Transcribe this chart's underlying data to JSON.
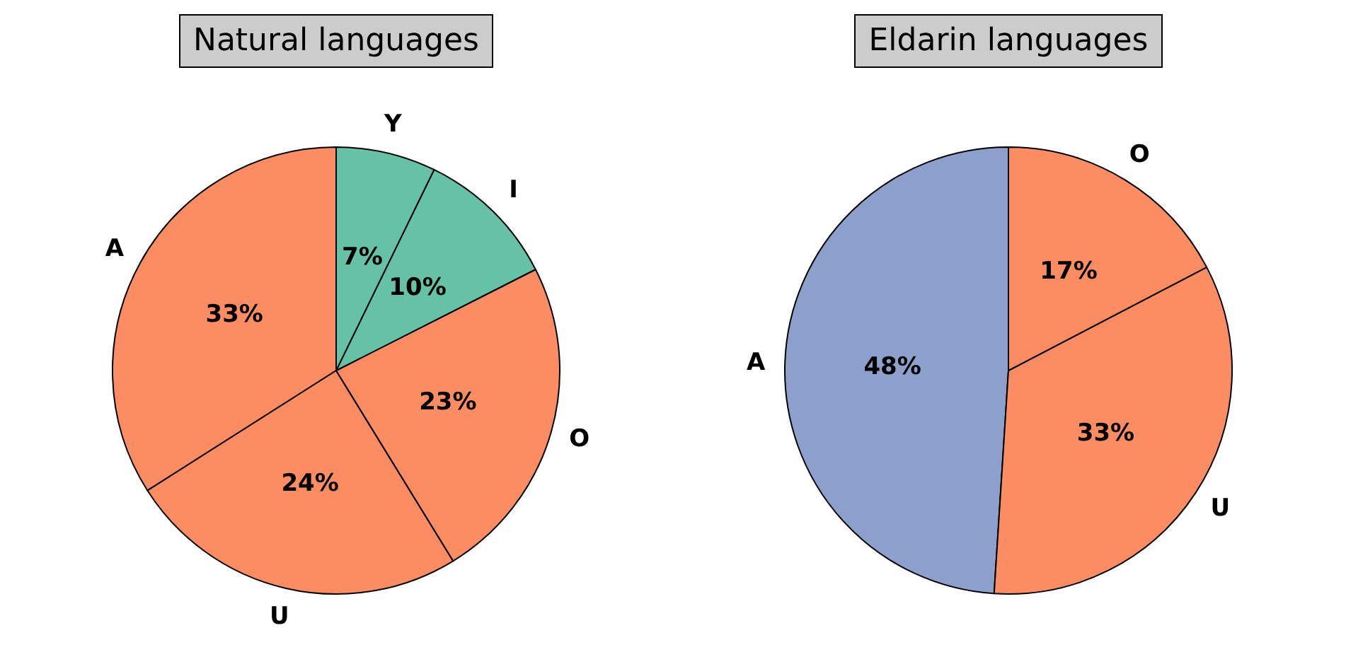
{
  "chart_data": [
    {
      "type": "pie",
      "title": "Natural languages",
      "categories": [
        "A",
        "U",
        "O",
        "I",
        "Y"
      ],
      "values": [
        33,
        24,
        23,
        10,
        7
      ],
      "value_labels": [
        "33%",
        "24%",
        "23%",
        "10%",
        "7%"
      ],
      "colors": [
        "#fc8d62",
        "#fc8d62",
        "#fc8d62",
        "#66c2a5",
        "#66c2a5"
      ]
    },
    {
      "type": "pie",
      "title": "Eldarin languages",
      "categories": [
        "A",
        "U",
        "O"
      ],
      "values": [
        48,
        33,
        17
      ],
      "value_labels": [
        "48%",
        "33%",
        "17%"
      ],
      "colors": [
        "#8da0cb",
        "#fc8d62",
        "#fc8d62"
      ]
    }
  ]
}
